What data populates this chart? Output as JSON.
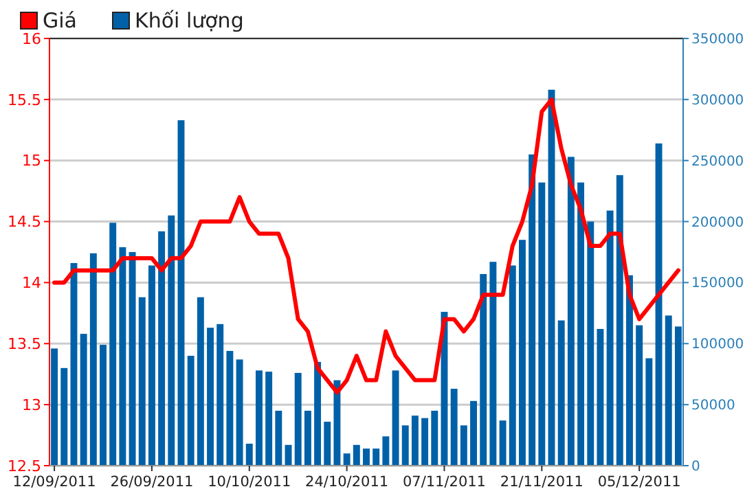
{
  "chart_data": {
    "type": "bar",
    "categories": [
      "12/09/2011",
      null,
      null,
      null,
      null,
      null,
      null,
      null,
      null,
      null,
      "26/09/2011",
      null,
      null,
      null,
      null,
      null,
      null,
      null,
      null,
      null,
      "10/10/2011",
      null,
      null,
      null,
      null,
      null,
      null,
      null,
      null,
      null,
      "24/10/2011",
      null,
      null,
      null,
      null,
      null,
      null,
      null,
      null,
      null,
      "07/11/2011",
      null,
      null,
      null,
      null,
      null,
      null,
      null,
      null,
      null,
      "21/11/2011",
      null,
      null,
      null,
      null,
      null,
      null,
      null,
      null,
      null,
      "05/12/2011",
      null,
      null,
      null,
      null
    ],
    "series": [
      {
        "name": "Giá",
        "type": "line",
        "axis": "y",
        "color": "#ff0000",
        "values": [
          14.0,
          14.0,
          14.1,
          14.1,
          14.1,
          14.1,
          14.1,
          14.2,
          14.2,
          14.2,
          14.2,
          14.1,
          14.2,
          14.2,
          14.3,
          14.5,
          14.5,
          14.5,
          14.5,
          14.7,
          14.5,
          14.4,
          14.4,
          14.4,
          14.2,
          13.7,
          13.6,
          13.3,
          13.2,
          13.1,
          13.2,
          13.4,
          13.2,
          13.2,
          13.6,
          13.4,
          13.3,
          13.2,
          13.2,
          13.2,
          13.7,
          13.7,
          13.6,
          13.7,
          13.9,
          13.9,
          13.9,
          14.3,
          14.5,
          14.8,
          15.4,
          15.5,
          15.1,
          14.8,
          14.6,
          14.3,
          14.3,
          14.4,
          14.4,
          13.9,
          13.7,
          13.8,
          13.9,
          14.0,
          14.1
        ]
      },
      {
        "name": "Khối lượng",
        "axis": "y2",
        "color": "#0061a8",
        "values": [
          96000,
          80000,
          166000,
          108000,
          174000,
          99000,
          199000,
          179000,
          175000,
          138000,
          164000,
          192000,
          205000,
          283000,
          90000,
          138000,
          113000,
          116000,
          94000,
          87000,
          18000,
          78000,
          77000,
          45000,
          17000,
          76000,
          45000,
          85000,
          36000,
          70000,
          10000,
          17000,
          14000,
          14000,
          24000,
          78000,
          33000,
          41000,
          39000,
          45000,
          126000,
          63000,
          33000,
          53000,
          157000,
          167000,
          37000,
          164000,
          185000,
          255000,
          232000,
          308000,
          119000,
          253000,
          232000,
          200000,
          112000,
          209000,
          238000,
          156000,
          115000,
          88000,
          264000,
          123000,
          114000
        ]
      }
    ],
    "ylim": [
      12.5,
      16
    ],
    "yticks": [
      12.5,
      13,
      13.5,
      14,
      14.5,
      15,
      15.5,
      16
    ],
    "y2lim": [
      0,
      350000
    ],
    "y2ticks": [
      0,
      50000,
      100000,
      150000,
      200000,
      250000,
      300000,
      350000
    ],
    "grid": "y",
    "legend": "top left"
  }
}
